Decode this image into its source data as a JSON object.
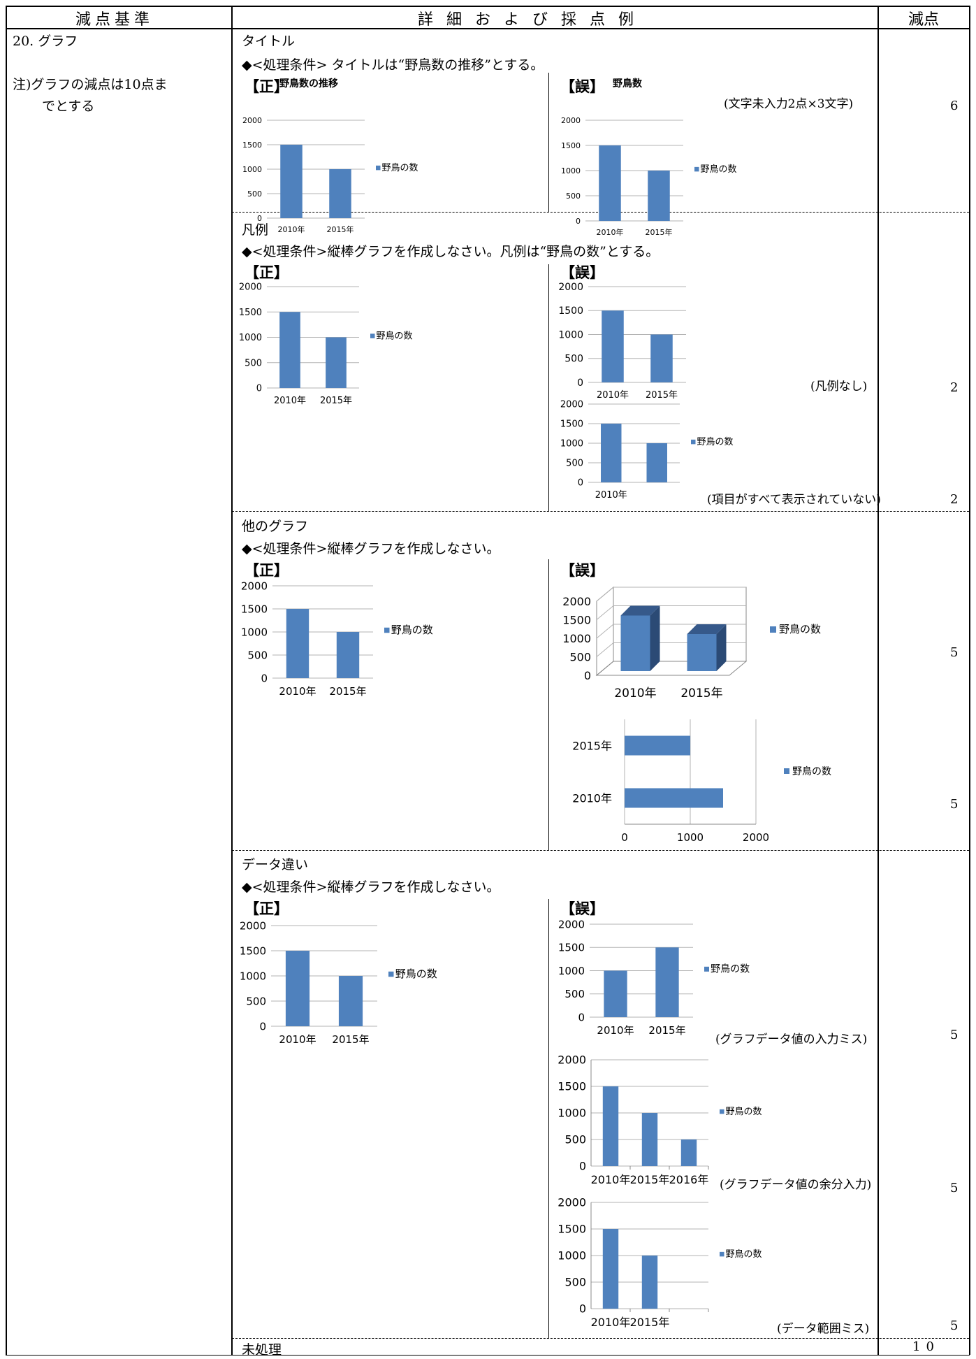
{
  "header": {
    "col1": "減点基準",
    "col2": "詳 細 お よ び 採 点 例",
    "col3": "減点"
  },
  "left": {
    "item": "20. グラフ",
    "note1": "注)グラフの減点は10点ま",
    "note2": "でとする"
  },
  "labels": {
    "correct": "【正】",
    "wrong": "【誤】"
  },
  "sections": {
    "title": {
      "heading": "タイトル",
      "condition": "◆<処理条件> タイトルは“野鳥数の推移”とする。",
      "note": "(文字未入力2点×3文字)",
      "points": "6"
    },
    "legend": {
      "heading": "凡例",
      "condition": "◆<処理条件>縦棒グラフを作成しなさい。凡例は“野鳥の数”とする。",
      "note1": "(凡例なし)",
      "note2": "(項目がすべて表示されていない)",
      "points1": "2",
      "points2": "2"
    },
    "other": {
      "heading": "他のグラフ",
      "condition": "◆<処理条件>縦棒グラフを作成しなさい。",
      "points1": "5",
      "points2": "5"
    },
    "data": {
      "heading": "データ違い",
      "condition": "◆<処理条件>縦棒グラフを作成しなさい。",
      "note1": "(グラフデータ値の入力ミス)",
      "note2": "(グラフデータ値の余分入力)",
      "note3": "(データ範囲ミス)",
      "points1": "5",
      "points2": "5",
      "points3": "5"
    },
    "unprocessed": {
      "heading": "未処理",
      "points": "10"
    }
  },
  "chart_data": [
    {
      "id": "c1",
      "type": "bar",
      "title": "野鳥数の推移",
      "categories": [
        "2010年",
        "2015年"
      ],
      "series": [
        {
          "name": "野鳥の数",
          "values": [
            1500,
            1000
          ]
        }
      ],
      "ylim": [
        0,
        2000
      ],
      "ticks": [
        "2000",
        "1500",
        "1000",
        "500",
        "0"
      ],
      "legend": "right",
      "color": "#4f81bd"
    },
    {
      "id": "c2",
      "type": "bar",
      "title": "野鳥数",
      "categories": [
        "2010年",
        "2015年"
      ],
      "series": [
        {
          "name": "野鳥の数",
          "values": [
            1500,
            1000
          ]
        }
      ],
      "ylim": [
        0,
        2000
      ],
      "ticks": [
        "2000",
        "1500",
        "1000",
        "500",
        "0"
      ],
      "legend": "right",
      "color": "#4f81bd"
    },
    {
      "id": "c3",
      "type": "bar",
      "categories": [
        "2010年",
        "2015年"
      ],
      "series": [
        {
          "name": "野鳥の数",
          "values": [
            1500,
            1000
          ]
        }
      ],
      "ylim": [
        0,
        2000
      ],
      "ticks": [
        "2000",
        "1500",
        "1000",
        "500",
        "0"
      ],
      "legend": "right",
      "color": "#4f81bd"
    },
    {
      "id": "c4",
      "type": "bar",
      "categories": [
        "2010年",
        "2015年"
      ],
      "series": [
        {
          "name": "",
          "values": [
            1500,
            1000
          ]
        }
      ],
      "ylim": [
        0,
        2000
      ],
      "ticks": [
        "2000",
        "1500",
        "1000",
        "500",
        "0"
      ],
      "legend": "none",
      "color": "#4f81bd"
    },
    {
      "id": "c5",
      "type": "bar",
      "categories": [
        "2010年",
        ""
      ],
      "series": [
        {
          "name": "野鳥の数",
          "values": [
            1500,
            1000
          ]
        }
      ],
      "ylim": [
        0,
        2000
      ],
      "ticks": [
        "2000",
        "1500",
        "1000",
        "500",
        "0"
      ],
      "legend": "right",
      "color": "#4f81bd"
    },
    {
      "id": "c6",
      "type": "bar",
      "categories": [
        "2010年",
        "2015年"
      ],
      "series": [
        {
          "name": "野鳥の数",
          "values": [
            1500,
            1000
          ]
        }
      ],
      "ylim": [
        0,
        2000
      ],
      "ticks": [
        "2000",
        "1500",
        "1000",
        "500",
        "0"
      ],
      "legend": "right",
      "color": "#4f81bd"
    },
    {
      "id": "c7",
      "type": "bar3d",
      "categories": [
        "2010年",
        "2015年"
      ],
      "series": [
        {
          "name": "野鳥の数",
          "values": [
            1500,
            1000
          ]
        }
      ],
      "ylim": [
        0,
        2000
      ],
      "ticks": [
        "2000",
        "1500",
        "1000",
        "500",
        "0"
      ],
      "legend": "right",
      "color": "#4f81bd"
    },
    {
      "id": "c8",
      "type": "hbar",
      "categories": [
        "2015年",
        "2010年"
      ],
      "series": [
        {
          "name": "野鳥の数",
          "values": [
            1000,
            1500
          ]
        }
      ],
      "xlim": [
        0,
        2000
      ],
      "ticks": [
        "0",
        "1000",
        "2000"
      ],
      "legend": "right",
      "color": "#4f81bd"
    },
    {
      "id": "c9",
      "type": "bar",
      "categories": [
        "2010年",
        "2015年"
      ],
      "series": [
        {
          "name": "野鳥の数",
          "values": [
            1500,
            1000
          ]
        }
      ],
      "ylim": [
        0,
        2000
      ],
      "ticks": [
        "2000",
        "1500",
        "1000",
        "500",
        "0"
      ],
      "legend": "right",
      "color": "#4f81bd"
    },
    {
      "id": "c10",
      "type": "bar",
      "categories": [
        "2010年",
        "2015年"
      ],
      "series": [
        {
          "name": "野鳥の数",
          "values": [
            1000,
            1500
          ]
        }
      ],
      "ylim": [
        0,
        2000
      ],
      "ticks": [
        "2000",
        "1500",
        "1000",
        "500",
        "0"
      ],
      "legend": "right",
      "color": "#4f81bd"
    },
    {
      "id": "c11",
      "type": "bar",
      "categories": [
        "2010年",
        "2015年",
        "2016年"
      ],
      "series": [
        {
          "name": "野鳥の数",
          "values": [
            1500,
            1000,
            500
          ]
        }
      ],
      "ylim": [
        0,
        2000
      ],
      "ticks": [
        "2000",
        "1500",
        "1000",
        "500",
        "0"
      ],
      "legend": "right",
      "color": "#4f81bd"
    },
    {
      "id": "c12",
      "type": "bar",
      "categories": [
        "2010年",
        "2015年",
        ""
      ],
      "series": [
        {
          "name": "野鳥の数",
          "values": [
            1500,
            1000,
            null
          ]
        }
      ],
      "ylim": [
        0,
        2000
      ],
      "ticks": [
        "2000",
        "1500",
        "1000",
        "500",
        "0"
      ],
      "legend": "right",
      "color": "#4f81bd"
    }
  ]
}
